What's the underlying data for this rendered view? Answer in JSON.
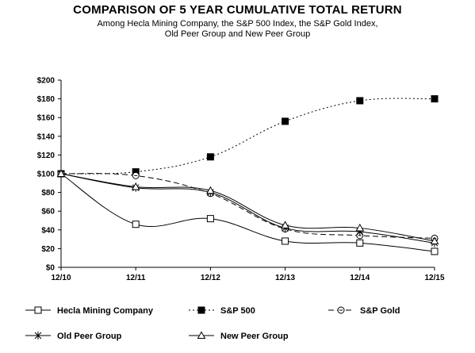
{
  "chart_data": {
    "type": "line",
    "title": "COMPARISON OF 5 YEAR CUMULATIVE TOTAL RETURN",
    "subtitle_lines": [
      "Among Hecla Mining Company, the S&P 500 Index, the S&P Gold Index,",
      "Old Peer Group and New Peer Group"
    ],
    "categories": [
      "12/10",
      "12/11",
      "12/12",
      "12/13",
      "12/14",
      "12/15"
    ],
    "ylim": [
      0,
      200
    ],
    "y_ticks": [
      0,
      20,
      40,
      60,
      80,
      100,
      120,
      140,
      160,
      180,
      200
    ],
    "y_tick_labels": [
      "$0",
      "$20",
      "$40",
      "$60",
      "$80",
      "$100",
      "$120",
      "$140",
      "$160",
      "$180",
      "$200"
    ],
    "grid": false,
    "legend_position": "bottom",
    "series": [
      {
        "name": "Hecla Mining Company",
        "values": [
          100,
          46,
          52,
          28,
          26,
          17
        ],
        "marker": "square-open",
        "dash": "solid"
      },
      {
        "name": "S&P 500",
        "values": [
          100,
          102,
          118,
          156,
          178,
          180
        ],
        "marker": "square-filled",
        "dash": "dotted"
      },
      {
        "name": "S&P Gold",
        "values": [
          100,
          98,
          79,
          41,
          34,
          31
        ],
        "marker": "circle-open",
        "dash": "dashed"
      },
      {
        "name": "Old Peer Group",
        "values": [
          100,
          85,
          80,
          42,
          38,
          26
        ],
        "marker": "asterisk",
        "dash": "solid"
      },
      {
        "name": "New Peer Group",
        "values": [
          100,
          86,
          82,
          45,
          42,
          28
        ],
        "marker": "triangle-open",
        "dash": "solid"
      }
    ]
  }
}
